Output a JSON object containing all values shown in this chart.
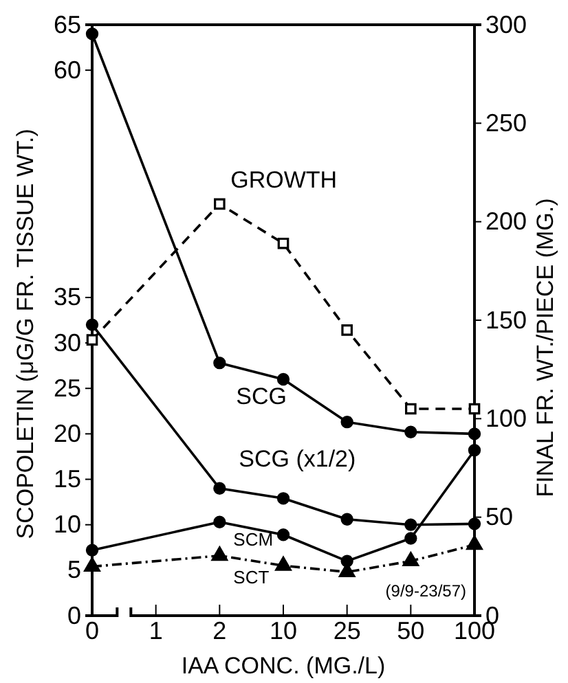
{
  "chart_data": {
    "type": "line",
    "categories": [
      "0",
      "1",
      "2",
      "10",
      "25",
      "50",
      "100"
    ],
    "xlabel": "IAA CONC. (MG./L)",
    "ylabel": "SCOPOLETIN (μG/G FR. TISSUE WT.)",
    "y2label": "FINAL FR. WT./PIECE (MG.)",
    "ylim": [
      0,
      65
    ],
    "yticks": [
      0,
      5,
      10,
      15,
      20,
      25,
      30,
      35,
      60,
      65
    ],
    "y2lim": [
      0,
      300
    ],
    "y2ticks": [
      0,
      50,
      100,
      150,
      200,
      250,
      300
    ],
    "grid": false,
    "legend": false,
    "annotations": [
      "(9/9-23/57)"
    ],
    "series": [
      {
        "name": "GROWTH",
        "color": "#000000",
        "axis": "y2",
        "marker": "square",
        "line_style": "dashed",
        "values": [
          140,
          null,
          209,
          189,
          145,
          105,
          105
        ]
      },
      {
        "name": "SCG",
        "color": "#000000",
        "marker": "circle",
        "line_style": "solid",
        "values": [
          64,
          null,
          27.8,
          26,
          21.3,
          20.2,
          20
        ]
      },
      {
        "name": "SCG (x1/2)",
        "color": "#000000",
        "marker": "circle",
        "line_style": "solid",
        "values": [
          32,
          null,
          14,
          12.9,
          10.6,
          10,
          10.1
        ]
      },
      {
        "name": "SCM",
        "color": "#000000",
        "marker": "circle",
        "line_style": "solid",
        "values": [
          7.2,
          null,
          10.3,
          8.9,
          6,
          8.5,
          18.2
        ]
      },
      {
        "name": "SCT",
        "color": "#000000",
        "marker": "triangle",
        "line_style": "dotted",
        "values": [
          5.4,
          null,
          6.6,
          5.5,
          4.8,
          6,
          7.8
        ]
      }
    ]
  }
}
